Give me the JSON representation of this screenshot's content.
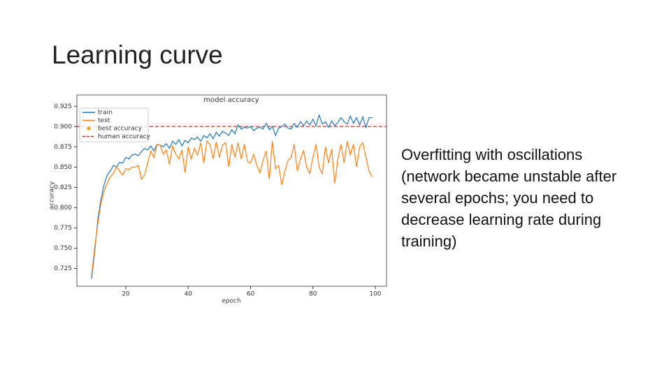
{
  "slide": {
    "title": "Learning curve",
    "body": "Overfitting with oscillations (network became unstable after several epochs; you need to decrease learning rate during training)"
  },
  "chart_data": {
    "type": "line",
    "title": "model accuracy",
    "x_label": "epoch",
    "y_label": "accuracy",
    "x": [
      9,
      10,
      11,
      12,
      13,
      14,
      15,
      16,
      17,
      18,
      19,
      20,
      21,
      22,
      23,
      24,
      25,
      26,
      27,
      28,
      29,
      30,
      31,
      32,
      33,
      34,
      35,
      36,
      37,
      38,
      39,
      40,
      41,
      42,
      43,
      44,
      45,
      46,
      47,
      48,
      49,
      50,
      51,
      52,
      53,
      54,
      55,
      56,
      57,
      58,
      59,
      60,
      61,
      62,
      63,
      64,
      65,
      66,
      67,
      68,
      69,
      70,
      71,
      72,
      73,
      74,
      75,
      76,
      77,
      78,
      79,
      80,
      81,
      82,
      83,
      84,
      85,
      86,
      87,
      88,
      89,
      90,
      91,
      92,
      93,
      94,
      95,
      96,
      97,
      98,
      99
    ],
    "series": [
      {
        "name": "train",
        "color": "#1f77b4",
        "values": [
          0.712,
          0.745,
          0.785,
          0.81,
          0.828,
          0.84,
          0.845,
          0.852,
          0.85,
          0.856,
          0.855,
          0.862,
          0.86,
          0.865,
          0.866,
          0.864,
          0.869,
          0.873,
          0.871,
          0.876,
          0.87,
          0.878,
          0.877,
          0.875,
          0.879,
          0.873,
          0.882,
          0.878,
          0.884,
          0.876,
          0.883,
          0.88,
          0.886,
          0.884,
          0.887,
          0.882,
          0.889,
          0.886,
          0.891,
          0.885,
          0.893,
          0.888,
          0.894,
          0.892,
          0.889,
          0.896,
          0.891,
          0.902,
          0.897,
          0.899,
          0.898,
          0.9,
          0.895,
          0.898,
          0.899,
          0.897,
          0.904,
          0.896,
          0.9,
          0.889,
          0.898,
          0.9,
          0.903,
          0.898,
          0.897,
          0.904,
          0.899,
          0.906,
          0.901,
          0.907,
          0.902,
          0.909,
          0.901,
          0.914,
          0.903,
          0.906,
          0.899,
          0.907,
          0.901,
          0.905,
          0.911,
          0.906,
          0.903,
          0.913,
          0.904,
          0.911,
          0.902,
          0.912,
          0.899,
          0.911,
          0.911
        ]
      },
      {
        "name": "test",
        "color": "#ff7f0e",
        "values": [
          0.716,
          0.75,
          0.78,
          0.805,
          0.82,
          0.83,
          0.838,
          0.842,
          0.85,
          0.845,
          0.84,
          0.848,
          0.847,
          0.85,
          0.85,
          0.852,
          0.835,
          0.84,
          0.855,
          0.87,
          0.862,
          0.878,
          0.877,
          0.866,
          0.871,
          0.853,
          0.876,
          0.866,
          0.86,
          0.871,
          0.843,
          0.875,
          0.86,
          0.873,
          0.865,
          0.88,
          0.855,
          0.882,
          0.878,
          0.86,
          0.881,
          0.862,
          0.877,
          0.88,
          0.85,
          0.878,
          0.862,
          0.88,
          0.86,
          0.878,
          0.857,
          0.855,
          0.866,
          0.852,
          0.843,
          0.858,
          0.87,
          0.835,
          0.882,
          0.848,
          0.852,
          0.828,
          0.845,
          0.858,
          0.862,
          0.878,
          0.845,
          0.86,
          0.87,
          0.85,
          0.842,
          0.862,
          0.878,
          0.85,
          0.842,
          0.875,
          0.855,
          0.872,
          0.83,
          0.86,
          0.878,
          0.855,
          0.882,
          0.865,
          0.878,
          0.85,
          0.875,
          0.88,
          0.862,
          0.845,
          0.838
        ]
      }
    ],
    "markers": [
      {
        "name": "best accuracy",
        "color": "#e8a72a"
      }
    ],
    "hlines": [
      {
        "name": "human accuracy",
        "color": "#d62728",
        "style": "dashed",
        "y": 0.9
      }
    ],
    "xlim": [
      4.3,
      103.6
    ],
    "xticks": [
      20,
      40,
      60,
      80,
      100
    ],
    "ylim": [
      0.703,
      0.939
    ],
    "yticks": [
      0.725,
      {
        "value": 0.75,
        "label": "0.750"
      },
      0.775,
      {
        "value": 0.8,
        "label": "0.800"
      },
      0.825,
      {
        "value": 0.85,
        "label": "0.850"
      },
      0.875,
      {
        "value": 0.9,
        "label": "0.900"
      },
      0.925
    ],
    "legend": "upper left"
  }
}
